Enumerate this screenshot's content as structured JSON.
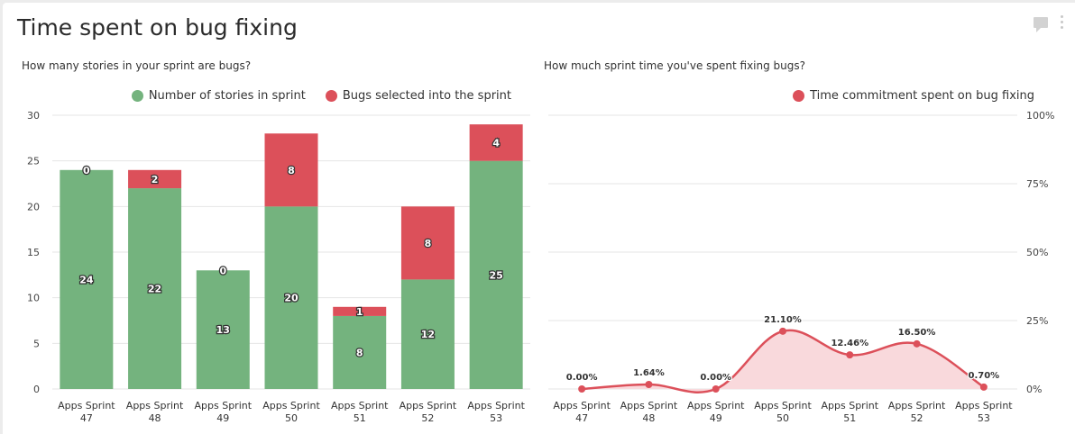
{
  "header": {
    "title": "Time spent on bug fixing",
    "comment_icon": "comment-icon",
    "more_icon": "more-vertical-icon"
  },
  "colors": {
    "green": "#74b37e",
    "red": "#dc505a",
    "area_fill": "#f9d9dc",
    "grid": "#e6e6e6"
  },
  "chart_data": [
    {
      "type": "bar",
      "stacked": true,
      "title": "How many stories in your sprint are bugs?",
      "categories": [
        "Apps Sprint 47",
        "Apps Sprint 48",
        "Apps Sprint 49",
        "Apps Sprint 50",
        "Apps Sprint 51",
        "Apps Sprint 52",
        "Apps Sprint 53"
      ],
      "series": [
        {
          "name": "Number of stories in sprint",
          "color": "#74b37e",
          "values": [
            24,
            22,
            13,
            20,
            8,
            12,
            25
          ]
        },
        {
          "name": "Bugs selected into the sprint",
          "color": "#dc505a",
          "values": [
            0,
            2,
            0,
            8,
            1,
            8,
            4
          ]
        }
      ],
      "ylim": [
        0,
        30
      ],
      "yticks": [
        "0",
        "5",
        "10",
        "15",
        "20",
        "25",
        "30"
      ],
      "grid": true,
      "legend": "top-right"
    },
    {
      "type": "area",
      "title": "How much sprint time you've spent fixing bugs?",
      "categories": [
        "Apps Sprint 47",
        "Apps Sprint 48",
        "Apps Sprint 49",
        "Apps Sprint 50",
        "Apps Sprint 51",
        "Apps Sprint 52",
        "Apps Sprint 53"
      ],
      "series": [
        {
          "name": "Time commitment spent on bug fixing",
          "color": "#dc505a",
          "values": [
            0.0,
            1.64,
            0.0,
            21.1,
            12.46,
            16.5,
            0.7
          ],
          "labels": [
            "0.00%",
            "1.64%",
            "0.00%",
            "21.10%",
            "12.46%",
            "16.50%",
            "0.70%"
          ]
        }
      ],
      "ylim": [
        0,
        100
      ],
      "yticks": [
        "0%",
        "25%",
        "50%",
        "75%",
        "100%"
      ],
      "y_axis_side": "right",
      "grid": true,
      "legend": "top-right"
    }
  ]
}
